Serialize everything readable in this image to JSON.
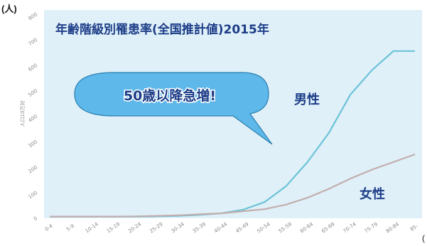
{
  "chart_data": {
    "type": "line",
    "title": "年齢階級別罹患率(全国推計値)2015年",
    "ylabel": "人口10万対",
    "y_unit_label": "(人)",
    "x_unit_label": "(",
    "callout": "50歳以降急増!",
    "categories": [
      "0-4",
      "5-9",
      "10-14",
      "15-19",
      "20-24",
      "25-29",
      "30-34",
      "35-39",
      "40-44",
      "45-49",
      "50-54",
      "55-59",
      "60-64",
      "65-69",
      "70-74",
      "75-79",
      "80-84",
      "85-"
    ],
    "ylim": [
      0,
      800
    ],
    "yticks": [
      0,
      100,
      200,
      300,
      400,
      500,
      600,
      700,
      800
    ],
    "grid": false,
    "series": [
      {
        "name": "男性",
        "color": "#6cc3d8",
        "values": [
          1,
          1,
          1,
          1,
          1,
          2,
          4,
          8,
          14,
          28,
          58,
          120,
          215,
          330,
          480,
          575,
          650,
          650
        ]
      },
      {
        "name": "女性",
        "color": "#c2aeae",
        "values": [
          1,
          1,
          1,
          1,
          2,
          4,
          6,
          10,
          14,
          22,
          30,
          48,
          75,
          110,
          150,
          185,
          215,
          245
        ]
      }
    ],
    "colors": {
      "background": "#dff0f8",
      "title": "#1d3d88",
      "callout_fill": "#5eb8ea",
      "callout_text": "#1d3d88"
    }
  }
}
